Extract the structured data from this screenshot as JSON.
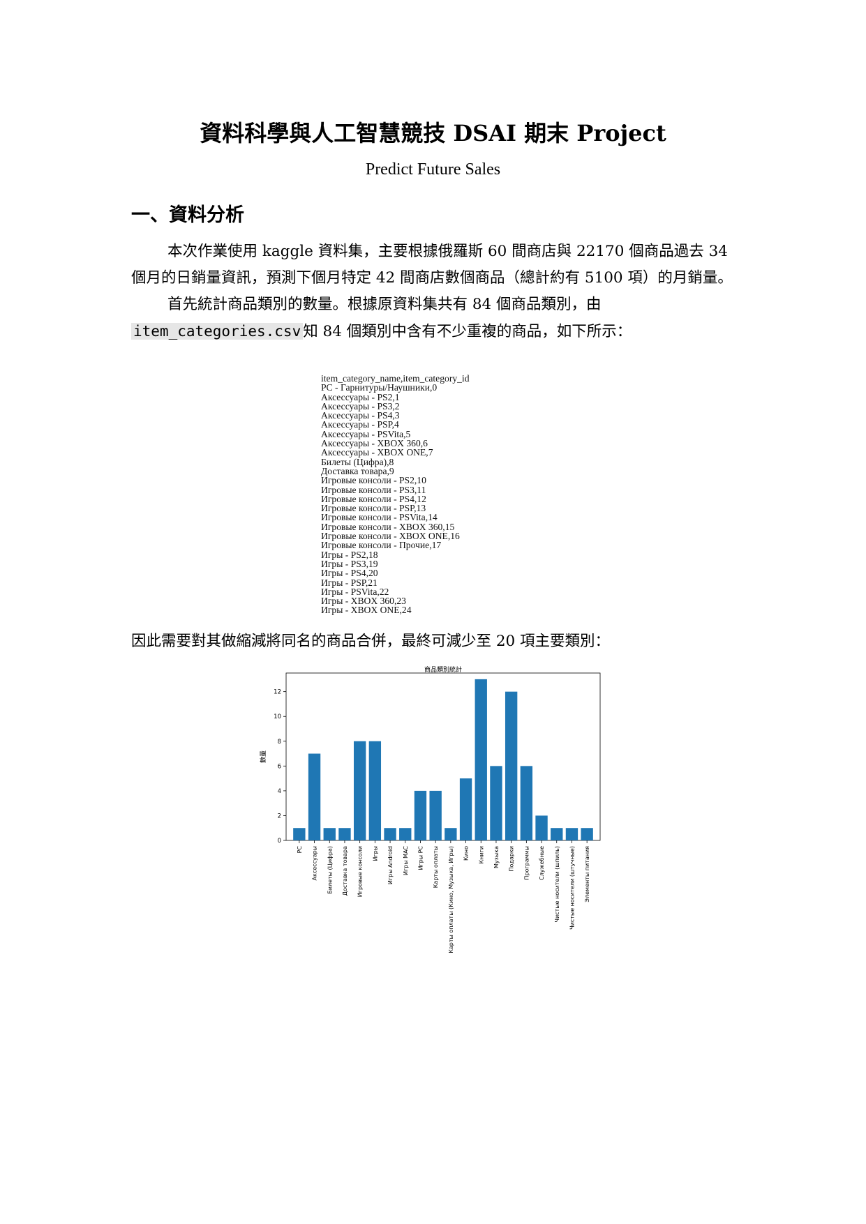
{
  "doc": {
    "title": "資料科學與人工智慧競技 DSAI 期末 Project",
    "subtitle": "Predict Future Sales",
    "section1": "一、資料分析",
    "para1": "本次作業使用 kaggle 資料集，主要根據俄羅斯 60 間商店與 22170 個商品過去 34 個月的日銷量資訊，預測下個月特定 42 間商店數個商品（總計約有 5100 項）的月銷量。",
    "para2_a": "首先統計商品類別的數量。根據原資料集共有 84 個商品類別，由",
    "para2_code": "item_categories.csv",
    "para2_b": "知 84 個類別中含有不少重複的商品，如下所示：",
    "para3": "因此需要對其做縮減將同名的商品合併，最終可減少至 20 項主要類別："
  },
  "csv_lines": [
    "item_category_name,item_category_id",
    "PC - Гарнитуры/Наушники,0",
    "Аксессуары - PS2,1",
    "Аксессуары - PS3,2",
    "Аксессуары - PS4,3",
    "Аксессуары - PSP,4",
    "Аксессуары - PSVita,5",
    "Аксессуары - XBOX 360,6",
    "Аксессуары - XBOX ONE,7",
    "Билеты (Цифра),8",
    "Доставка товара,9",
    "Игровые консоли - PS2,10",
    "Игровые консоли - PS3,11",
    "Игровые консоли - PS4,12",
    "Игровые консоли - PSP,13",
    "Игровые консоли - PSVita,14",
    "Игровые консоли - XBOX 360,15",
    "Игровые консоли - XBOX ONE,16",
    "Игровые консоли - Прочие,17",
    "Игры - PS2,18",
    "Игры - PS3,19",
    "Игры - PS4,20",
    "Игры - PSP,21",
    "Игры - PSVita,22",
    "Игры - XBOX 360,23",
    "Игры - XBOX ONE,24"
  ],
  "chart_data": {
    "type": "bar",
    "title": "商品類別統計",
    "xlabel": "",
    "ylabel": "數量",
    "ylim": [
      0,
      13.5
    ],
    "yticks": [
      0,
      2,
      4,
      6,
      8,
      10,
      12
    ],
    "grid": false,
    "color": "#1f77b4",
    "categories": [
      "PC",
      "Аксессуары",
      "Билеты (Цифра)",
      "Доставка товара",
      "Игровые консоли",
      "Игры",
      "Игры Android",
      "Игры MAC",
      "Игры PC",
      "Карты оплаты",
      "Карты оплаты (Кино, Музыка, Игры)",
      "Кино",
      "Книги",
      "Музыка",
      "Подарки",
      "Программы",
      "Служебные",
      "Чистые носители (шпиль)",
      "Чистые носители (штучные)",
      "Элементы питания"
    ],
    "values": [
      1,
      7,
      1,
      1,
      8,
      8,
      1,
      1,
      4,
      4,
      1,
      5,
      13,
      6,
      12,
      6,
      2,
      1,
      1,
      1
    ]
  }
}
